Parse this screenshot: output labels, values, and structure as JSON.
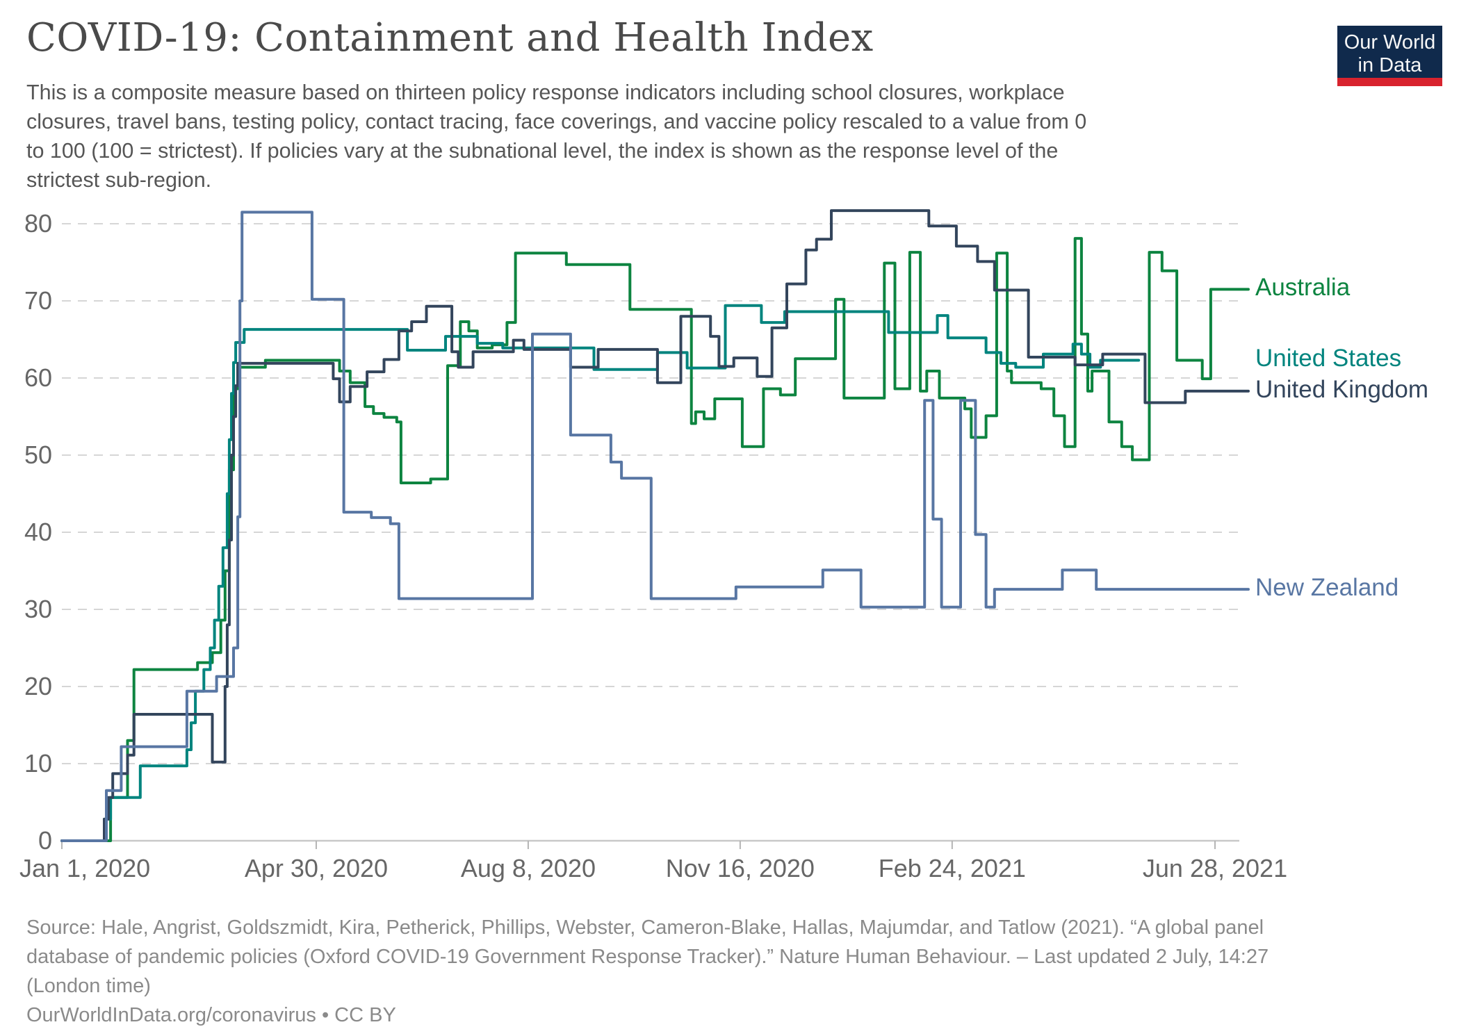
{
  "header": {
    "title": "COVID-19: Containment and Health Index",
    "subtitle_lines": [
      "This is a composite measure based on thirteen policy response indicators including school closures, workplace",
      "closures, travel bans, testing policy, contact tracing, face coverings, and vaccine policy rescaled to a value from 0",
      "to 100 (100 = strictest). If policies vary at the subnational level, the index is shown as the response level of the",
      "strictest sub-region."
    ]
  },
  "logo": {
    "line1": "Our World",
    "line2": "in Data",
    "bg_color": "#102a4c",
    "bar_color": "#d8232e"
  },
  "chart_data": {
    "type": "line",
    "step": true,
    "title": "COVID-19: Containment and Health Index",
    "xlabel": "",
    "ylabel": "",
    "ylim": [
      0,
      80
    ],
    "grid": "horizontal-dashed",
    "legend_position": "right-of-line-ends",
    "x_epoch": "2020-01-01",
    "x_ticks": [
      {
        "day": 0,
        "label": "Jan 1, 2020"
      },
      {
        "day": 120,
        "label": "Apr 30, 2020"
      },
      {
        "day": 220,
        "label": "Aug 8, 2020"
      },
      {
        "day": 320,
        "label": "Nov 16, 2020"
      },
      {
        "day": 420,
        "label": "Feb 24, 2021"
      },
      {
        "day": 544,
        "label": "Jun 28, 2021"
      }
    ],
    "y_ticks": [
      0,
      10,
      20,
      30,
      40,
      50,
      60,
      70,
      80
    ],
    "series": [
      {
        "name": "Australia",
        "color": "#0d8440",
        "extend_to_label": true,
        "points": [
          [
            0,
            0
          ],
          [
            23,
            5.6
          ],
          [
            31,
            13
          ],
          [
            34,
            22.2
          ],
          [
            64,
            23.1
          ],
          [
            71,
            24.4
          ],
          [
            75,
            28.6
          ],
          [
            77,
            35
          ],
          [
            79,
            48.1
          ],
          [
            81,
            58.6
          ],
          [
            83,
            61.4
          ],
          [
            96,
            62.3
          ],
          [
            131,
            60.9
          ],
          [
            136,
            59.4
          ],
          [
            143,
            56.3
          ],
          [
            147,
            55.4
          ],
          [
            152,
            54.9
          ],
          [
            158,
            54.3
          ],
          [
            160,
            46.4
          ],
          [
            174,
            46.9
          ],
          [
            182,
            61.6
          ],
          [
            188,
            67.3
          ],
          [
            192,
            66.1
          ],
          [
            196,
            63.9
          ],
          [
            203,
            64.3
          ],
          [
            210,
            67.2
          ],
          [
            214,
            76.2
          ],
          [
            238,
            74.7
          ],
          [
            268,
            68.9
          ],
          [
            297,
            54.1
          ],
          [
            299,
            55.6
          ],
          [
            303,
            54.7
          ],
          [
            308,
            57.3
          ],
          [
            321,
            51.1
          ],
          [
            331,
            58.6
          ],
          [
            339,
            57.8
          ],
          [
            346,
            62.5
          ],
          [
            365,
            70.2
          ],
          [
            369,
            57.4
          ],
          [
            388,
            74.9
          ],
          [
            393,
            58.6
          ],
          [
            400,
            76.3
          ],
          [
            405,
            58.3
          ],
          [
            408,
            60.9
          ],
          [
            414,
            57.4
          ],
          [
            426,
            56
          ],
          [
            429,
            52.3
          ],
          [
            436,
            55.1
          ],
          [
            441,
            76.2
          ],
          [
            446,
            60.9
          ],
          [
            448,
            59.4
          ],
          [
            462,
            58.6
          ],
          [
            468,
            55.1
          ],
          [
            473,
            51.1
          ],
          [
            478,
            78.1
          ],
          [
            481,
            65.7
          ],
          [
            484,
            58.3
          ],
          [
            486,
            60.9
          ],
          [
            494,
            54.3
          ],
          [
            500,
            51.1
          ],
          [
            505,
            49.4
          ],
          [
            513,
            76.3
          ],
          [
            519,
            73.9
          ],
          [
            526,
            62.3
          ],
          [
            538,
            59.9
          ],
          [
            542,
            71.5
          ],
          [
            547,
            71.5
          ]
        ]
      },
      {
        "name": "United States",
        "color": "#00847e",
        "extend_to_label": false,
        "points": [
          [
            0,
            0
          ],
          [
            20,
            2.8
          ],
          [
            23,
            5.6
          ],
          [
            37,
            9.7
          ],
          [
            59,
            11.8
          ],
          [
            61,
            15.3
          ],
          [
            63,
            19.4
          ],
          [
            67,
            22.2
          ],
          [
            70,
            25
          ],
          [
            72,
            28.6
          ],
          [
            74,
            33
          ],
          [
            76,
            38
          ],
          [
            78,
            45
          ],
          [
            79,
            52
          ],
          [
            80,
            58
          ],
          [
            81,
            62
          ],
          [
            82,
            64.6
          ],
          [
            86,
            66.3
          ],
          [
            163,
            63.6
          ],
          [
            181,
            65.4
          ],
          [
            196,
            64.5
          ],
          [
            208,
            63.9
          ],
          [
            251,
            61.1
          ],
          [
            281,
            63.3
          ],
          [
            295,
            61.3
          ],
          [
            313,
            69.4
          ],
          [
            330,
            67.2
          ],
          [
            341,
            68.6
          ],
          [
            390,
            65.9
          ],
          [
            413,
            68.1
          ],
          [
            418,
            65.2
          ],
          [
            436,
            63.3
          ],
          [
            443,
            61.9
          ],
          [
            450,
            61.4
          ],
          [
            463,
            63.1
          ],
          [
            477,
            64.4
          ],
          [
            481,
            63.1
          ],
          [
            485,
            61.4
          ],
          [
            490,
            62.3
          ],
          [
            508,
            62.3
          ]
        ]
      },
      {
        "name": "United Kingdom",
        "color": "#33455c",
        "extend_to_label": true,
        "points": [
          [
            0,
            0
          ],
          [
            20,
            2.8
          ],
          [
            22,
            5.6
          ],
          [
            24,
            8.7
          ],
          [
            31,
            11.1
          ],
          [
            34,
            16.4
          ],
          [
            71,
            10.2
          ],
          [
            77,
            20
          ],
          [
            78,
            28
          ],
          [
            79,
            39
          ],
          [
            80,
            50
          ],
          [
            81,
            55
          ],
          [
            82,
            59
          ],
          [
            83,
            61.9
          ],
          [
            128,
            59.9
          ],
          [
            131,
            56.9
          ],
          [
            136,
            58.9
          ],
          [
            144,
            60.8
          ],
          [
            152,
            62.4
          ],
          [
            159,
            66.1
          ],
          [
            165,
            67.3
          ],
          [
            172,
            69.3
          ],
          [
            184,
            63.4
          ],
          [
            187,
            61.4
          ],
          [
            194,
            63.4
          ],
          [
            213,
            64.9
          ],
          [
            218,
            63.7
          ],
          [
            240,
            61.4
          ],
          [
            253,
            63.7
          ],
          [
            281,
            59.4
          ],
          [
            292,
            68
          ],
          [
            306,
            65.4
          ],
          [
            310,
            61.5
          ],
          [
            317,
            62.6
          ],
          [
            328,
            60.2
          ],
          [
            335,
            66.5
          ],
          [
            342,
            72.2
          ],
          [
            351,
            76.6
          ],
          [
            356,
            78
          ],
          [
            363,
            81.7
          ],
          [
            409,
            79.7
          ],
          [
            422,
            77.1
          ],
          [
            432,
            75.1
          ],
          [
            440,
            71.4
          ],
          [
            456,
            62.7
          ],
          [
            478,
            61.7
          ],
          [
            491,
            63.1
          ],
          [
            511,
            56.8
          ],
          [
            530,
            58.3
          ],
          [
            540,
            58.3
          ]
        ]
      },
      {
        "name": "New Zealand",
        "color": "#5876a3",
        "extend_to_label": true,
        "points": [
          [
            0,
            0
          ],
          [
            21,
            6.5
          ],
          [
            28,
            12.2
          ],
          [
            59,
            19.4
          ],
          [
            73,
            21.3
          ],
          [
            81,
            25
          ],
          [
            83,
            42
          ],
          [
            84,
            70
          ],
          [
            85,
            81.5
          ],
          [
            118,
            70.2
          ],
          [
            133,
            42.6
          ],
          [
            146,
            41.9
          ],
          [
            155,
            41.1
          ],
          [
            159,
            31.4
          ],
          [
            222,
            65.7
          ],
          [
            240,
            52.6
          ],
          [
            259,
            49.1
          ],
          [
            264,
            47
          ],
          [
            278,
            31.4
          ],
          [
            318,
            32.9
          ],
          [
            359,
            35.1
          ],
          [
            377,
            30.3
          ],
          [
            407,
            57.1
          ],
          [
            411,
            41.7
          ],
          [
            415,
            30.3
          ],
          [
            424,
            57.1
          ],
          [
            431,
            39.7
          ],
          [
            436,
            30.3
          ],
          [
            440,
            32.6
          ],
          [
            472,
            35.1
          ],
          [
            488,
            32.6
          ],
          [
            539,
            32.6
          ]
        ]
      }
    ],
    "colors": {
      "gridline": "#d6d6d6",
      "baseline": "#c8c8c8",
      "tick_text": "#666666"
    }
  },
  "footer": {
    "source_lines": [
      "Source: Hale, Angrist, Goldszmidt, Kira, Petherick, Phillips, Webster, Cameron-Blake, Hallas, Majumdar, and Tatlow (2021). “A global panel",
      "database of pandemic policies (Oxford COVID-19 Government Response Tracker).” Nature Human Behaviour. – Last updated 2 July, 14:27",
      "(London time)"
    ],
    "cc_line": "OurWorldInData.org/coronavirus • CC BY"
  }
}
